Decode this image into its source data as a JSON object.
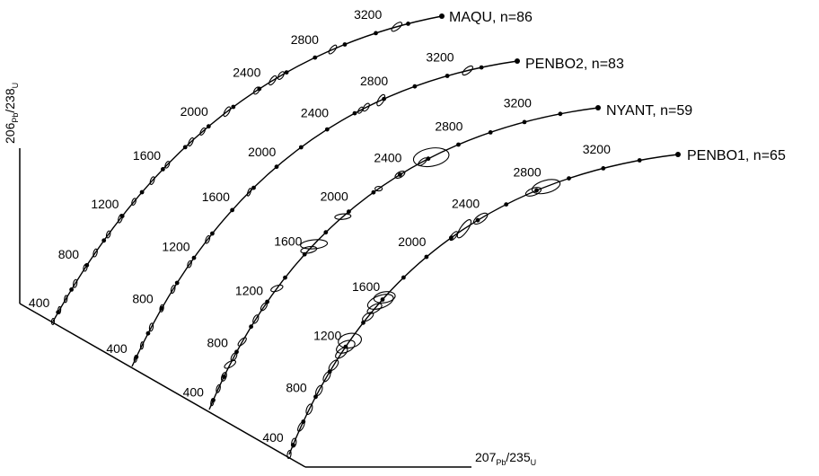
{
  "chart_data": {
    "type": "concordia",
    "title": "",
    "axes": {
      "x_label": {
        "mass1": "207",
        "el1": "Pb",
        "sep": "/",
        "mass2": "235",
        "el2": "U"
      },
      "y_label": {
        "mass1": "206",
        "el1": "Pb",
        "sep": "/",
        "mass2": "238",
        "el2": "U"
      }
    },
    "grid": false,
    "age_marker_step_ma": 200,
    "curves": [
      {
        "sample": "MAQU",
        "n": 86,
        "label": "MAQU, n=86",
        "age_labels": [
          "400",
          "800",
          "1200",
          "1600",
          "2000",
          "2400",
          "2800",
          "3200"
        ],
        "ellipses": [
          {
            "age": 3330,
            "w": 14,
            "h": 6,
            "rot": -40
          },
          {
            "age": 2920,
            "w": 12,
            "h": 5,
            "rot": -50
          },
          {
            "age": 2560,
            "w": 10,
            "h": 5,
            "rot": -55
          },
          {
            "age": 2500,
            "w": 12,
            "h": 5,
            "rot": -55
          },
          {
            "age": 2380,
            "w": 9,
            "h": 5,
            "rot": -55
          },
          {
            "age": 2150,
            "w": 12,
            "h": 5,
            "rot": -60
          },
          {
            "age": 1950,
            "w": 9,
            "h": 4,
            "rot": -60
          },
          {
            "age": 1850,
            "w": 10,
            "h": 4,
            "rot": -65
          },
          {
            "age": 1640,
            "w": 8,
            "h": 4,
            "rot": -65
          },
          {
            "age": 1500,
            "w": 9,
            "h": 4,
            "rot": -70
          },
          {
            "age": 1320,
            "w": 8,
            "h": 4,
            "rot": -70
          },
          {
            "age": 1180,
            "w": 10,
            "h": 4,
            "rot": -72
          },
          {
            "age": 1050,
            "w": 8,
            "h": 4,
            "rot": -74
          },
          {
            "age": 900,
            "w": 9,
            "h": 4,
            "rot": -76
          },
          {
            "age": 780,
            "w": 8,
            "h": 4,
            "rot": -78
          },
          {
            "age": 650,
            "w": 9,
            "h": 4,
            "rot": -80
          },
          {
            "age": 520,
            "w": 8,
            "h": 3,
            "rot": -82
          },
          {
            "age": 420,
            "w": 8,
            "h": 3,
            "rot": -84
          },
          {
            "age": 300,
            "w": 7,
            "h": 3,
            "rot": -85
          }
        ]
      },
      {
        "sample": "PENBO2",
        "n": 83,
        "label": "PENBO2, n=83",
        "age_labels": [
          "400",
          "800",
          "1200",
          "1600",
          "2000",
          "2400",
          "2800",
          "3200"
        ],
        "ellipses": [
          {
            "age": 3320,
            "w": 14,
            "h": 6,
            "rot": -40
          },
          {
            "age": 2780,
            "w": 14,
            "h": 6,
            "rot": -60
          },
          {
            "age": 2680,
            "w": 10,
            "h": 5,
            "rot": -55
          },
          {
            "age": 2640,
            "w": 8,
            "h": 4,
            "rot": -55
          },
          {
            "age": 1760,
            "w": 9,
            "h": 3,
            "rot": -70
          },
          {
            "age": 1350,
            "w": 9,
            "h": 4,
            "rot": -70
          },
          {
            "age": 1150,
            "w": 8,
            "h": 4,
            "rot": -72
          },
          {
            "age": 950,
            "w": 9,
            "h": 4,
            "rot": -75
          },
          {
            "age": 800,
            "w": 8,
            "h": 4,
            "rot": -78
          },
          {
            "age": 650,
            "w": 9,
            "h": 4,
            "rot": -80
          },
          {
            "age": 500,
            "w": 8,
            "h": 3,
            "rot": -82
          },
          {
            "age": 380,
            "w": 7,
            "h": 3,
            "rot": -84
          }
        ]
      },
      {
        "sample": "NYANT",
        "n": 59,
        "label": "NYANT, n=59",
        "age_labels": [
          "400",
          "800",
          "1200",
          "1600",
          "2000",
          "2400",
          "2800",
          "3200"
        ],
        "ellipses": [
          {
            "age": 2620,
            "w": 40,
            "h": 20,
            "rot": -10
          },
          {
            "age": 2560,
            "w": 12,
            "h": 5,
            "rot": -40
          },
          {
            "age": 2400,
            "w": 12,
            "h": 6,
            "rot": -30
          },
          {
            "age": 2240,
            "w": 8,
            "h": 5,
            "rot": 0
          },
          {
            "age": 1950,
            "w": 18,
            "h": 6,
            "rot": -5
          },
          {
            "age": 1690,
            "w": 30,
            "h": 10,
            "rot": -5
          },
          {
            "age": 1640,
            "w": 18,
            "h": 7,
            "rot": -10
          },
          {
            "age": 1310,
            "w": 14,
            "h": 6,
            "rot": -20
          },
          {
            "age": 1160,
            "w": 10,
            "h": 5,
            "rot": -55
          },
          {
            "age": 1060,
            "w": 10,
            "h": 5,
            "rot": -65
          },
          {
            "age": 880,
            "w": 12,
            "h": 5,
            "rot": -45
          },
          {
            "age": 760,
            "w": 10,
            "h": 5,
            "rot": -60
          },
          {
            "age": 700,
            "w": 14,
            "h": 6,
            "rot": -30
          },
          {
            "age": 600,
            "w": 10,
            "h": 5,
            "rot": -70
          },
          {
            "age": 500,
            "w": 9,
            "h": 4,
            "rot": -75
          },
          {
            "age": 380,
            "w": 8,
            "h": 3,
            "rot": -80
          }
        ]
      },
      {
        "sample": "PENBO1",
        "n": 65,
        "label": "PENBO1, n=65",
        "age_labels": [
          "400",
          "800",
          "1200",
          "1600",
          "2000",
          "2400",
          "2800",
          "3200"
        ],
        "ellipses": [
          {
            "age": 2860,
            "w": 32,
            "h": 14,
            "rot": -15
          },
          {
            "age": 2780,
            "w": 18,
            "h": 8,
            "rot": -20
          },
          {
            "age": 2420,
            "w": 18,
            "h": 8,
            "rot": -35
          },
          {
            "age": 2300,
            "w": 24,
            "h": 8,
            "rot": -55
          },
          {
            "age": 2220,
            "w": 12,
            "h": 5,
            "rot": -50
          },
          {
            "age": 1620,
            "w": 24,
            "h": 12,
            "rot": -10
          },
          {
            "age": 1580,
            "w": 30,
            "h": 14,
            "rot": -20
          },
          {
            "age": 1520,
            "w": 18,
            "h": 8,
            "rot": -30
          },
          {
            "age": 1450,
            "w": 14,
            "h": 7,
            "rot": -35
          },
          {
            "age": 1250,
            "w": 26,
            "h": 16,
            "rot": -10
          },
          {
            "age": 1200,
            "w": 22,
            "h": 12,
            "rot": -25
          },
          {
            "age": 1150,
            "w": 16,
            "h": 8,
            "rot": -40
          },
          {
            "age": 1050,
            "w": 14,
            "h": 7,
            "rot": -50
          },
          {
            "age": 960,
            "w": 12,
            "h": 6,
            "rot": -60
          },
          {
            "age": 850,
            "w": 12,
            "h": 6,
            "rot": -65
          },
          {
            "age": 700,
            "w": 12,
            "h": 6,
            "rot": -70
          },
          {
            "age": 560,
            "w": 12,
            "h": 5,
            "rot": -60
          },
          {
            "age": 420,
            "w": 10,
            "h": 5,
            "rot": -80
          },
          {
            "age": 300,
            "w": 9,
            "h": 4,
            "rot": -82
          }
        ]
      }
    ]
  }
}
